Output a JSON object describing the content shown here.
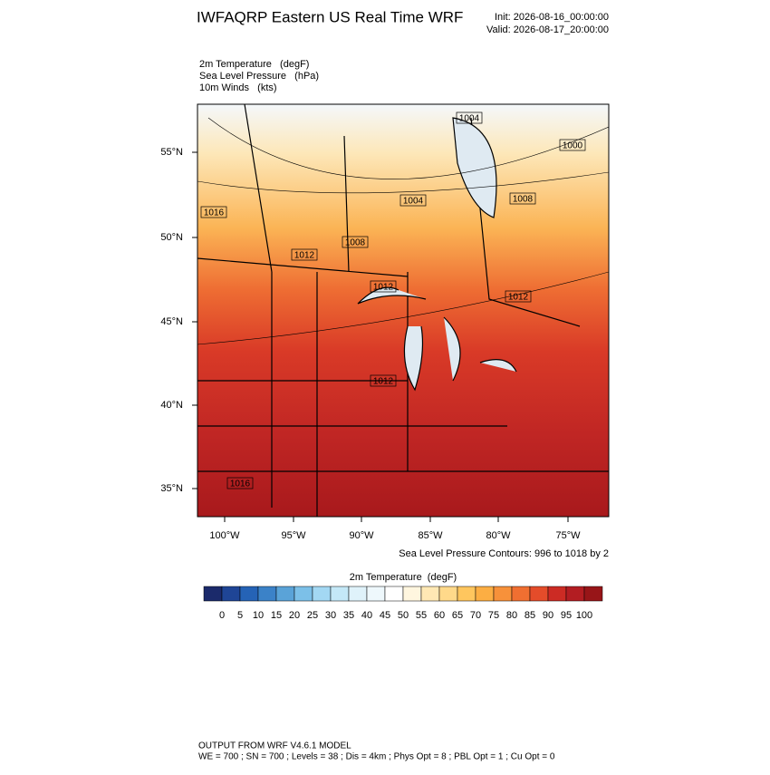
{
  "header": {
    "title": "IWFAQRP Eastern US Real Time WRF",
    "init": "Init: 2026-08-16_00:00:00",
    "valid": "Valid: 2026-08-17_20:00:00"
  },
  "fields": [
    "2m Temperature   (degF)",
    "Sea Level Pressure   (hPa)",
    "10m Winds   (kts)"
  ],
  "map": {
    "lat_labels": [
      "55°N",
      "50°N",
      "45°N",
      "40°N",
      "35°N"
    ],
    "lon_labels": [
      "100°W",
      "95°W",
      "90°W",
      "85°W",
      "80°W",
      "75°W"
    ],
    "contour_labels": [
      "1004",
      "1000",
      "1004",
      "1008",
      "1016",
      "1008",
      "1012",
      "1012",
      "1012",
      "1012",
      "1016"
    ],
    "contour_note": "Sea Level Pressure Contours: 996 to 1018 by 2"
  },
  "colorbar": {
    "title": "2m Temperature  (degF)",
    "labels": [
      0,
      5,
      10,
      15,
      20,
      25,
      30,
      35,
      40,
      45,
      50,
      55,
      60,
      65,
      70,
      75,
      80,
      85,
      90,
      95,
      100
    ],
    "colors": [
      "#1b2a6b",
      "#1f4596",
      "#2563b6",
      "#3b82c8",
      "#5aa3d8",
      "#7cc0e8",
      "#a3d8f3",
      "#c4e8f7",
      "#dff2fa",
      "#eef8fc",
      "#ffffff",
      "#fff6df",
      "#ffe8b4",
      "#ffd98a",
      "#ffc65e",
      "#fcae43",
      "#f7913a",
      "#f06f31",
      "#e44c2a",
      "#cc2b24",
      "#b31d22",
      "#981518"
    ]
  },
  "footer": [
    "OUTPUT FROM WRF V4.6.1 MODEL",
    "WE = 700 ; SN = 700 ; Levels = 38 ; Dis = 4km ; Phys Opt = 8 ; PBL Opt = 1 ; Cu Opt = 0"
  ]
}
